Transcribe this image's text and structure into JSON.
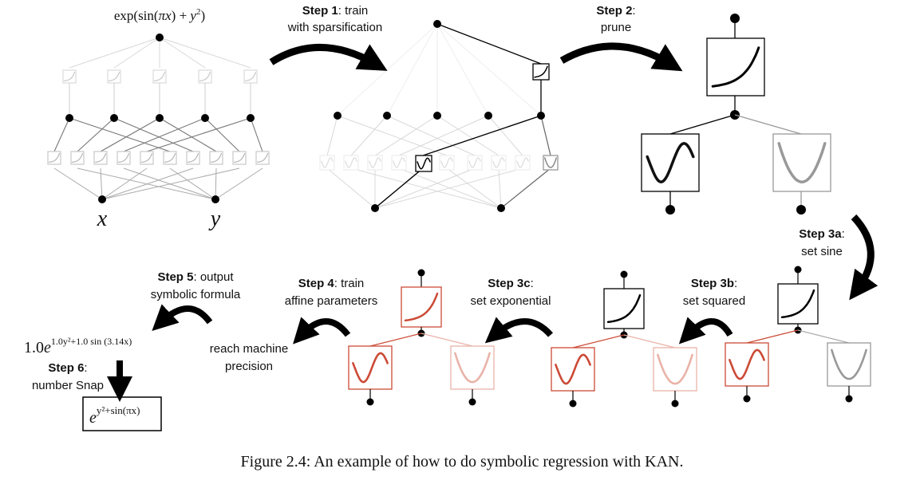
{
  "top_formula": {
    "prefix": "exp(sin(",
    "pi": "π",
    "x": "x",
    "mid": ") + ",
    "y": "y",
    "sup": "2",
    "close": ")"
  },
  "var_x": "x",
  "var_y": "y",
  "steps": {
    "s1": {
      "label": "Step 1",
      "line1": ": train",
      "line2": "with sparsification"
    },
    "s2": {
      "label": "Step 2",
      "line1": ":",
      "line2": "prune"
    },
    "s3a": {
      "label": "Step 3a",
      "line1": ":",
      "line2": "set sine"
    },
    "s3b": {
      "label": "Step 3b",
      "line1": ":",
      "line2": "set squared"
    },
    "s3c": {
      "label": "Step 3c",
      "line1": ":",
      "line2": "set exponential"
    },
    "s4": {
      "label": "Step 4",
      "line1": ": train",
      "line2": "affine parameters"
    },
    "s5": {
      "label": "Step 5",
      "line1": ": output",
      "line2": "symbolic formula"
    },
    "s6": {
      "label": "Step 6",
      "line1": ":",
      "line2": "number Snap"
    }
  },
  "reach": {
    "line1": "reach machine",
    "line2": "precision"
  },
  "formula_output": {
    "coef": "1.0",
    "base": "e",
    "exp": "1.0y²+1.0 sin (3.14x)"
  },
  "formula_final": {
    "base": "e",
    "exp": "y²+sin(πx)"
  },
  "caption": "Figure 2.4: An example of how to do symbolic regression with KAN.",
  "colors": {
    "black": "#111111",
    "red": "#cc4a36",
    "lightred": "#e9b3a9",
    "gray": "#999999",
    "faint": "#d8d8d8"
  }
}
